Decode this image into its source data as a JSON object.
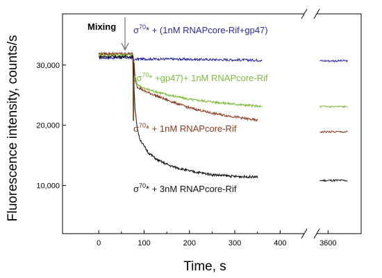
{
  "chart_data": {
    "type": "line",
    "xlabel": "Time, s",
    "ylabel": "Fluorescence intensity, counts/s",
    "x_ticks": [
      0,
      100,
      200,
      300,
      400,
      3600
    ],
    "y_ticks": [
      10000,
      20000,
      30000
    ],
    "y_tick_labels": [
      "10,000",
      "20,000",
      "30,000"
    ],
    "ylim": [
      2000,
      38500
    ],
    "xlim_main": [
      -80,
      450
    ],
    "xlim_break": [
      3570,
      3700
    ],
    "axis_break": true,
    "grid": false,
    "annotation": {
      "text": "Mixing",
      "x": 75
    },
    "series": [
      {
        "name_parts": [
          "σ",
          "70",
          "* + (1nM RNAPcore-Rif+gp47)"
        ],
        "color": "#2a2aa8",
        "pre_mix": 31200,
        "points": [
          [
            80,
            31000
          ],
          [
            150,
            31000
          ],
          [
            250,
            30900
          ],
          [
            360,
            30800
          ],
          [
            3600,
            30700
          ]
        ]
      },
      {
        "name_parts": [
          "(σ",
          "70",
          "* +gp47)+ 1nM RNAPcore-Rif"
        ],
        "color": "#7cbb3a",
        "pre_mix": 31700,
        "points": [
          [
            78,
            30500
          ],
          [
            80,
            28000
          ],
          [
            85,
            26800
          ],
          [
            100,
            26100
          ],
          [
            150,
            25100
          ],
          [
            200,
            24300
          ],
          [
            250,
            23900
          ],
          [
            300,
            23500
          ],
          [
            360,
            23100
          ],
          [
            3600,
            23100
          ]
        ]
      },
      {
        "name_parts": [
          "σ",
          "70",
          "* + 1nM RNAPcore-Rif"
        ],
        "color": "#8b3a1a",
        "pre_mix": 31900,
        "points": [
          [
            78,
            30500
          ],
          [
            80,
            27600
          ],
          [
            85,
            26400
          ],
          [
            100,
            25700
          ],
          [
            150,
            24200
          ],
          [
            200,
            22900
          ],
          [
            250,
            22000
          ],
          [
            300,
            21400
          ],
          [
            350,
            20800
          ],
          [
            3600,
            18900
          ]
        ]
      },
      {
        "name_parts": [
          "σ",
          "70",
          "* + 3nM RNAPcore-Rif"
        ],
        "color": "#111111",
        "pre_mix": 31400,
        "points": [
          [
            76,
            31400
          ],
          [
            78,
            26000
          ],
          [
            80,
            22500
          ],
          [
            85,
            19500
          ],
          [
            90,
            17800
          ],
          [
            100,
            16500
          ],
          [
            110,
            15400
          ],
          [
            130,
            14200
          ],
          [
            160,
            13200
          ],
          [
            200,
            12400
          ],
          [
            250,
            11800
          ],
          [
            300,
            11500
          ],
          [
            350,
            11400
          ],
          [
            3600,
            10800
          ]
        ]
      }
    ]
  }
}
